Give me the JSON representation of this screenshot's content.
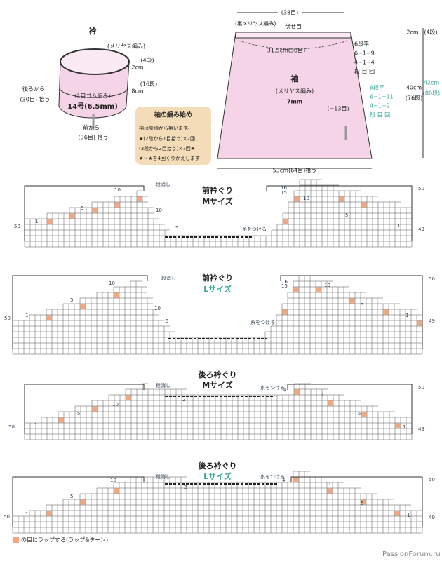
{
  "collar": {
    "title": "衿",
    "stitch": "(メリヤス編み)",
    "top_height": "2cm",
    "top_rows": "(4段)",
    "body_height": "8cm",
    "body_rows": "(16段)",
    "back_pickup": [
      "後ろから",
      "(30目) 拾う"
    ],
    "rib": "(1目ゴム編み)",
    "needle": "14号(6.5mm)",
    "front_pickup": [
      "前から",
      "(36目) 拾う"
    ]
  },
  "note_box": {
    "title": "袖の編み始め",
    "lines": [
      "袖は身頃から拾います。",
      "★(2段から1目拾う)×2回",
      "(3段から2目拾う)×7回★",
      "★～★を4回くりかえします"
    ]
  },
  "sleeve": {
    "top_stitches": "(38目)",
    "top_stitch": "(裏メリヤス編み)",
    "bind_off": "伏せ目",
    "top_width": "31.5cm(38目)",
    "decrease_m": [
      "6段平",
      "6−1−9",
      "4−1−4",
      "段 目 回"
    ],
    "title": "袖",
    "stitch": "(メリヤス編み)",
    "needle": "7mm",
    "decrease_count": "(−13目)",
    "decrease_l": [
      "6段平",
      "6−1−11",
      "4−1−2",
      "段 目 回"
    ],
    "bottom_width": "53cm(64目)拾う",
    "right_top": [
      "2cm",
      "(4段)"
    ],
    "right_m": [
      "40cm",
      "(76段)"
    ],
    "right_l": [
      "42cm",
      "(80段)"
    ]
  },
  "charts": [
    {
      "title": "前衿ぐり",
      "size": "Mサイズ",
      "labels": [
        "段消し",
        "10",
        "5",
        "1",
        "50",
        "10",
        "5",
        "糸をつける",
        "16",
        "15",
        "10",
        "5",
        "1",
        "50",
        "49"
      ]
    },
    {
      "title": "前衿ぐり",
      "size": "Lサイズ",
      "labels": [
        "段消し",
        "10",
        "5",
        "1",
        "50",
        "10",
        "5",
        "糸をつける",
        "16",
        "15",
        "10",
        "5",
        "1",
        "50",
        "49"
      ]
    },
    {
      "title": "後ろ衿ぐり",
      "size": "Mサイズ",
      "labels": [
        "段消し",
        "10",
        "5",
        "1",
        "50",
        "2",
        "糸をつける",
        "4",
        "10",
        "5",
        "1",
        "50",
        "49"
      ]
    },
    {
      "title": "後ろ衿ぐり",
      "size": "Lサイズ",
      "labels": [
        "段消し",
        "10",
        "5",
        "1",
        "50",
        "2",
        "糸をつける",
        "4",
        "10",
        "5",
        "1",
        "50",
        "49"
      ]
    }
  ],
  "legend": {
    "text": "の目にラップする(ラップ&ターン)"
  },
  "footer": "PassionForum.ru"
}
